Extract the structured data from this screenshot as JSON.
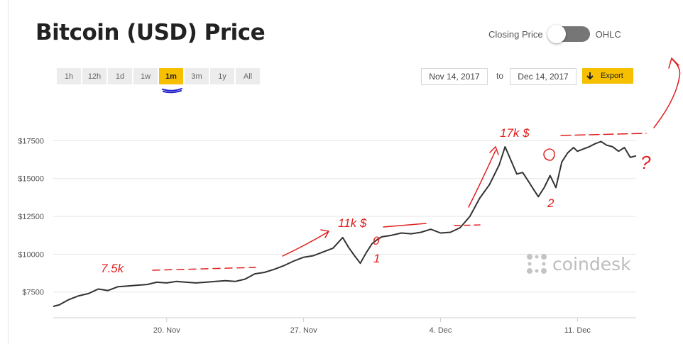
{
  "header": {
    "title": "Bitcoin (USD) Price",
    "closing_label": "Closing Price",
    "ohlc_label": "OHLC"
  },
  "ranges": [
    "1h",
    "12h",
    "1d",
    "1w",
    "1m",
    "3m",
    "1y",
    "All"
  ],
  "active_range": "1m",
  "date_range": {
    "from": "Nov 14, 2017",
    "to_label": "to",
    "to": "Dec 14, 2017"
  },
  "export_label": "Export",
  "watermark": "coindesk",
  "colors": {
    "line": "#333333",
    "accent": "#f6c000",
    "annotation": "#e01e1e",
    "grid": "#e6e6e6"
  },
  "chart_data": {
    "type": "line",
    "y_ticks": [
      7500,
      10000,
      12500,
      15000,
      17500
    ],
    "y_tick_labels": [
      "$7500",
      "$10000",
      "$12500",
      "$15000",
      "$17500"
    ],
    "x_tick_labels": [
      "20. Nov",
      "27. Nov",
      "4. Dec",
      "11. Dec"
    ],
    "x_tick_days": [
      20,
      27,
      34,
      41
    ],
    "xlim": [
      14.2,
      44.0
    ],
    "ylim": [
      5800,
      19300
    ],
    "grid": true,
    "series": [
      {
        "x": [
          14.2,
          14.5,
          15.0,
          15.5,
          16.0,
          16.5,
          17.0,
          17.5,
          18.0,
          18.5,
          19.0,
          19.5,
          20.0,
          20.5,
          21.0,
          21.5,
          22.0,
          22.5,
          23.0,
          23.5,
          24.0,
          24.5,
          25.0,
          25.5,
          26.0,
          26.5,
          27.0,
          27.5,
          28.0,
          28.5,
          29.0,
          29.3,
          29.6,
          29.9,
          30.2,
          30.5,
          30.8,
          31.0,
          31.5,
          32.0,
          32.5,
          33.0,
          33.5,
          34.0,
          34.5,
          35.0,
          35.5,
          36.0,
          36.5,
          37.0,
          37.3,
          37.6,
          37.9,
          38.2,
          38.5,
          38.8,
          39.0,
          39.3,
          39.6,
          39.9,
          40.2,
          40.5,
          40.8,
          41.0,
          41.3,
          41.6,
          41.9,
          42.2,
          42.5,
          42.8,
          43.1,
          43.4,
          43.7,
          44.0
        ],
        "y": [
          6550,
          6650,
          7000,
          7250,
          7400,
          7700,
          7600,
          7850,
          7900,
          7950,
          8000,
          8150,
          8100,
          8200,
          8150,
          8100,
          8150,
          8200,
          8250,
          8200,
          8350,
          8700,
          8800,
          9000,
          9250,
          9550,
          9800,
          9900,
          10150,
          10400,
          11100,
          10450,
          9900,
          9400,
          10100,
          10700,
          11000,
          11150,
          11250,
          11400,
          11350,
          11450,
          11650,
          11400,
          11450,
          11750,
          12500,
          13700,
          14600,
          15900,
          17100,
          16200,
          15300,
          15400,
          14800,
          14200,
          13800,
          14400,
          15200,
          14400,
          16100,
          16700,
          17050,
          16800,
          16950,
          17100,
          17300,
          17450,
          17200,
          17100,
          16800,
          17050,
          16400,
          16500
        ]
      }
    ],
    "annotations": [
      "7.5k",
      "11k $",
      "17k $",
      "0",
      "1",
      "2",
      "?"
    ]
  }
}
